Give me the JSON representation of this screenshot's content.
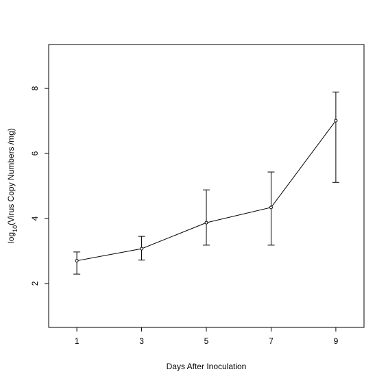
{
  "chart_data": {
    "type": "line",
    "x_label": "Days After Inoculation",
    "y_label_parts": [
      "log",
      "10",
      "(Virus Copy Numbers  /mg)"
    ],
    "x": [
      1,
      3,
      5,
      7,
      9
    ],
    "values": [
      2.7,
      3.07,
      3.87,
      4.34,
      7.01
    ],
    "upper": [
      2.97,
      3.45,
      4.88,
      5.43,
      7.89
    ],
    "lower": [
      2.29,
      2.72,
      3.18,
      3.18,
      5.11
    ],
    "color": "#000000",
    "xlim": [
      0.13,
      9.87
    ],
    "ylim": [
      0.65,
      9.35
    ],
    "xticks": [
      1,
      3,
      5,
      7,
      9
    ],
    "yticks": [
      2,
      4,
      6,
      8
    ]
  }
}
